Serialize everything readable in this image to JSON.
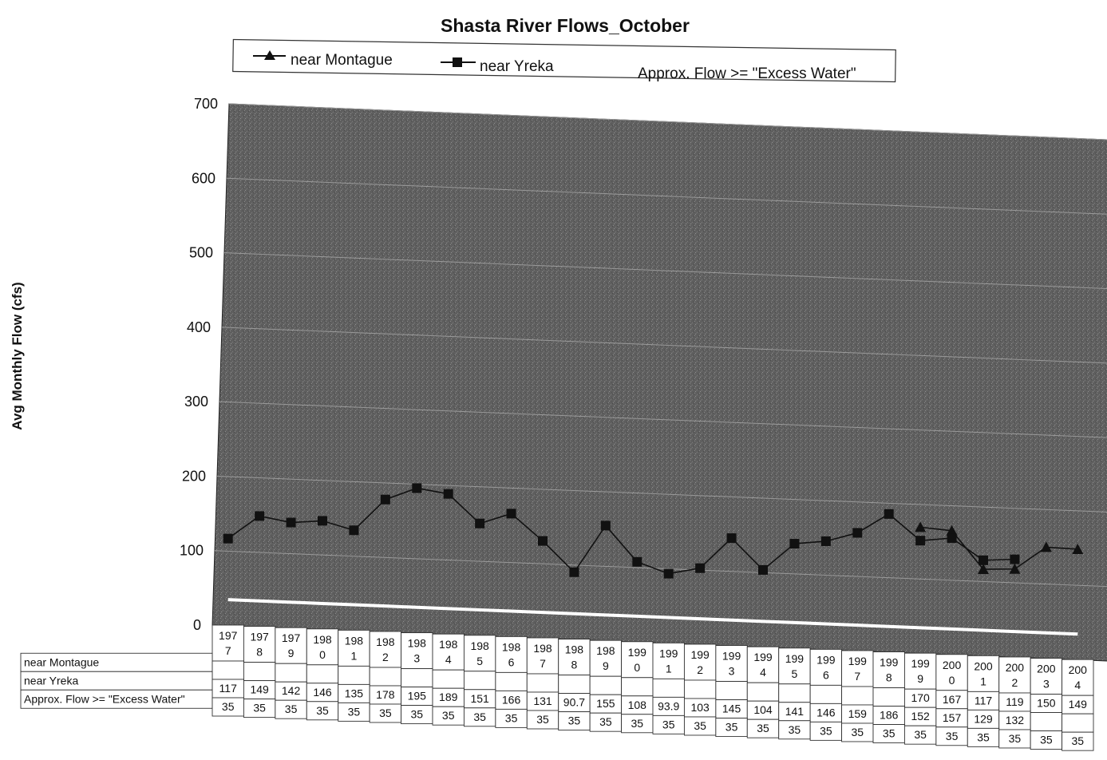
{
  "chart_data": {
    "type": "line",
    "title": "Shasta River Flows_October",
    "xlabel": "",
    "ylabel": "Avg Monthly Flow (cfs)",
    "ylim": [
      0,
      700
    ],
    "yticks": [
      "0",
      "100",
      "200",
      "300",
      "400",
      "500",
      "600",
      "700"
    ],
    "grid": "horizontal",
    "legend_position": "top",
    "categories": [
      [
        "197",
        "7"
      ],
      [
        "197",
        "8"
      ],
      [
        "197",
        "9"
      ],
      [
        "198",
        "0"
      ],
      [
        "198",
        "1"
      ],
      [
        "198",
        "2"
      ],
      [
        "198",
        "3"
      ],
      [
        "198",
        "4"
      ],
      [
        "198",
        "5"
      ],
      [
        "198",
        "6"
      ],
      [
        "198",
        "7"
      ],
      [
        "198",
        "8"
      ],
      [
        "198",
        "9"
      ],
      [
        "199",
        "0"
      ],
      [
        "199",
        "1"
      ],
      [
        "199",
        "2"
      ],
      [
        "199",
        "3"
      ],
      [
        "199",
        "4"
      ],
      [
        "199",
        "5"
      ],
      [
        "199",
        "6"
      ],
      [
        "199",
        "7"
      ],
      [
        "199",
        "8"
      ],
      [
        "199",
        "9"
      ],
      [
        "200",
        "0"
      ],
      [
        "200",
        "1"
      ],
      [
        "200",
        "2"
      ],
      [
        "200",
        "3"
      ],
      [
        "200",
        "4"
      ]
    ],
    "x": [
      1977,
      1978,
      1979,
      1980,
      1981,
      1982,
      1983,
      1984,
      1985,
      1986,
      1987,
      1988,
      1989,
      1990,
      1991,
      1992,
      1993,
      1994,
      1995,
      1996,
      1997,
      1998,
      1999,
      2000,
      2001,
      2002,
      2003,
      2004
    ],
    "series": [
      {
        "name": "near Montague",
        "marker": "triangle",
        "values": [
          null,
          null,
          null,
          null,
          null,
          null,
          null,
          null,
          null,
          null,
          null,
          null,
          null,
          null,
          null,
          null,
          null,
          null,
          null,
          null,
          null,
          null,
          170,
          167,
          117,
          119,
          150,
          149
        ],
        "table_values": [
          "",
          "",
          "",
          "",
          "",
          "",
          "",
          "",
          "",
          "",
          "",
          "",
          "",
          "",
          "",
          "",
          "",
          "",
          "",
          "",
          "",
          "",
          "170",
          "167",
          "117",
          "119",
          "150",
          "149"
        ]
      },
      {
        "name": "near Yreka",
        "marker": "square",
        "values": [
          117,
          149,
          142,
          146,
          135,
          178,
          195,
          189,
          151,
          166,
          131,
          90.7,
          155,
          108,
          93.9,
          103,
          145,
          104,
          141,
          146,
          159,
          186,
          152,
          157,
          129,
          132,
          null,
          null
        ],
        "table_values": [
          "117",
          "149",
          "142",
          "146",
          "135",
          "178",
          "195",
          "189",
          "151",
          "166",
          "131",
          "90.7",
          "155",
          "108",
          "93.9",
          "103",
          "145",
          "104",
          "141",
          "146",
          "159",
          "186",
          "152",
          "157",
          "129",
          "132",
          "",
          ""
        ]
      },
      {
        "name": "Approx. Flow >= \"Excess Water\"",
        "marker": "none",
        "color": "#ffffff",
        "values": [
          35,
          35,
          35,
          35,
          35,
          35,
          35,
          35,
          35,
          35,
          35,
          35,
          35,
          35,
          35,
          35,
          35,
          35,
          35,
          35,
          35,
          35,
          35,
          35,
          35,
          35,
          35,
          35
        ],
        "table_values": [
          "35",
          "35",
          "35",
          "35",
          "35",
          "35",
          "35",
          "35",
          "35",
          "35",
          "35",
          "35",
          "35",
          "35",
          "35",
          "35",
          "35",
          "35",
          "35",
          "35",
          "35",
          "35",
          "35",
          "35",
          "35",
          "35",
          "35",
          "35"
        ]
      }
    ],
    "colors": {
      "plot_background": "#5e5e5e",
      "line": "#111111",
      "threshold_line": "#ffffff",
      "gridline": "#9a9a9a"
    }
  }
}
